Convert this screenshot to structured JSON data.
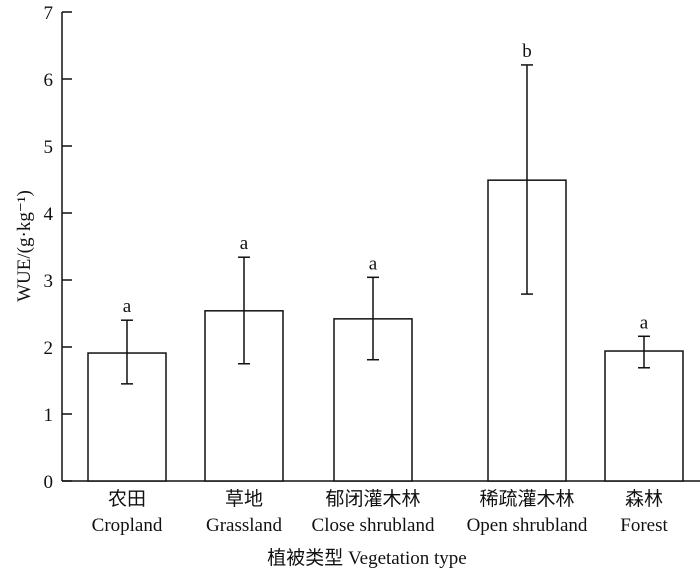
{
  "chart_data": {
    "type": "bar",
    "categories": [
      {
        "cn": "农田",
        "en": "Cropland"
      },
      {
        "cn": "草地",
        "en": "Grassland"
      },
      {
        "cn": "郁闭灌木林",
        "en": "Close shrubland"
      },
      {
        "cn": "稀疏灌木林",
        "en": "Open shrubland"
      },
      {
        "cn": "森林",
        "en": "Forest"
      }
    ],
    "values": [
      1.91,
      2.54,
      2.42,
      4.49,
      1.94
    ],
    "error_upper": [
      2.4,
      3.34,
      3.04,
      6.21,
      2.16
    ],
    "error_lower": [
      1.45,
      1.75,
      1.81,
      2.79,
      1.69
    ],
    "significance_letters": [
      "a",
      "a",
      "a",
      "b",
      "a"
    ],
    "xlabel": "植被类型 Vegetation type",
    "ylabel": "WUE/(g·kg⁻¹)",
    "ylim": [
      0,
      7
    ],
    "yticks": [
      "0",
      "1",
      "2",
      "3",
      "4",
      "5",
      "6",
      "7"
    ],
    "grid": false,
    "bar_fill": "#ffffff",
    "bar_stroke": "#111111"
  }
}
